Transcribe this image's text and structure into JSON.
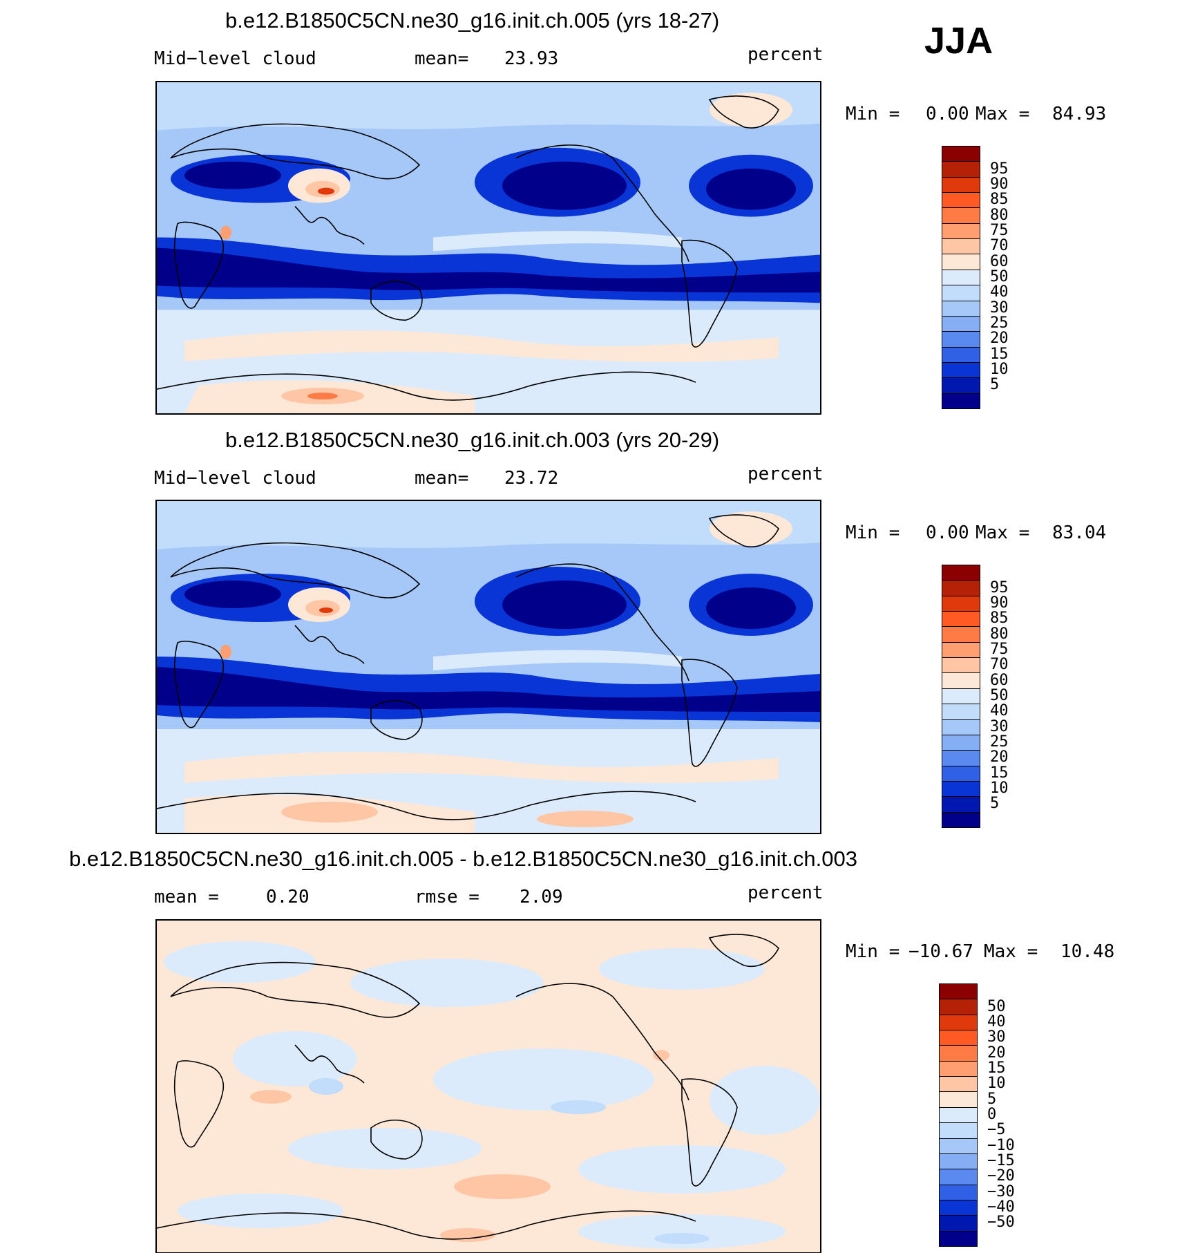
{
  "season": "JJA",
  "panels": [
    {
      "title": "b.e12.B1850C5CN.ne30_g16.init.ch.005 (yrs 18-27)",
      "left_label": "Mid−level cloud",
      "center_label": "mean=",
      "center_value": "23.93",
      "right_label": "percent",
      "min_label": "Min =",
      "min_value": "0.00",
      "max_label": "Max =",
      "max_value": "84.93",
      "colorbar_labels": [
        "95",
        "90",
        "85",
        "80",
        "75",
        "70",
        "60",
        "50",
        "40",
        "30",
        "25",
        "20",
        "15",
        "10",
        "5"
      ],
      "colorbar_colors": [
        "#8b0000",
        "#b52106",
        "#e03a0c",
        "#ff5a24",
        "#ff7b45",
        "#ff9e70",
        "#ffc6a6",
        "#fde8d7",
        "#dcebfc",
        "#c2dcfb",
        "#a6c8f8",
        "#85aef5",
        "#5a8af0",
        "#2f60e6",
        "#0a35d6",
        "#0018b0",
        "#00008a"
      ]
    },
    {
      "title": "b.e12.B1850C5CN.ne30_g16.init.ch.003 (yrs 20-29)",
      "left_label": "Mid−level cloud",
      "center_label": "mean=",
      "center_value": "23.72",
      "right_label": "percent",
      "min_label": "Min =",
      "min_value": "0.00",
      "max_label": "Max =",
      "max_value": "83.04",
      "colorbar_labels": [
        "95",
        "90",
        "85",
        "80",
        "75",
        "70",
        "60",
        "50",
        "40",
        "30",
        "25",
        "20",
        "15",
        "10",
        "5"
      ],
      "colorbar_colors": [
        "#8b0000",
        "#b52106",
        "#e03a0c",
        "#ff5a24",
        "#ff7b45",
        "#ff9e70",
        "#ffc6a6",
        "#fde8d7",
        "#dcebfc",
        "#c2dcfb",
        "#a6c8f8",
        "#85aef5",
        "#5a8af0",
        "#2f60e6",
        "#0a35d6",
        "#0018b0",
        "#00008a"
      ]
    },
    {
      "title": "b.e12.B1850C5CN.ne30_g16.init.ch.005 - b.e12.B1850C5CN.ne30_g16.init.ch.003",
      "left_label": "mean =",
      "left_value": "0.20",
      "center_label": "rmse =",
      "center_value": "2.09",
      "right_label": "percent",
      "min_label": "Min =",
      "min_value": "−10.67",
      "max_label": "Max =",
      "max_value": "10.48",
      "colorbar_labels": [
        "50",
        "40",
        "30",
        "20",
        "15",
        "10",
        "5",
        "0",
        "−5",
        "−10",
        "−15",
        "−20",
        "−30",
        "−40",
        "−50"
      ],
      "colorbar_colors": [
        "#8b0000",
        "#b52106",
        "#e03a0c",
        "#ff5a24",
        "#ff7b45",
        "#ff9e70",
        "#ffc6a6",
        "#fde8d7",
        "#dcebfc",
        "#c2dcfb",
        "#a6c8f8",
        "#85aef5",
        "#5a8af0",
        "#2f60e6",
        "#0a35d6",
        "#0018b0",
        "#00008a"
      ]
    }
  ],
  "map_colors": {
    "very_low": "#00008a",
    "low": "#0a35d6",
    "mid_low": "#5a8af0",
    "light_blue": "#a6c8f8",
    "pale_blue": "#dcebfc",
    "pale_orange": "#fde8d7",
    "light_orange": "#ffc6a6",
    "orange": "#ff7b45",
    "red": "#e03a0c",
    "coast": "#000000"
  }
}
